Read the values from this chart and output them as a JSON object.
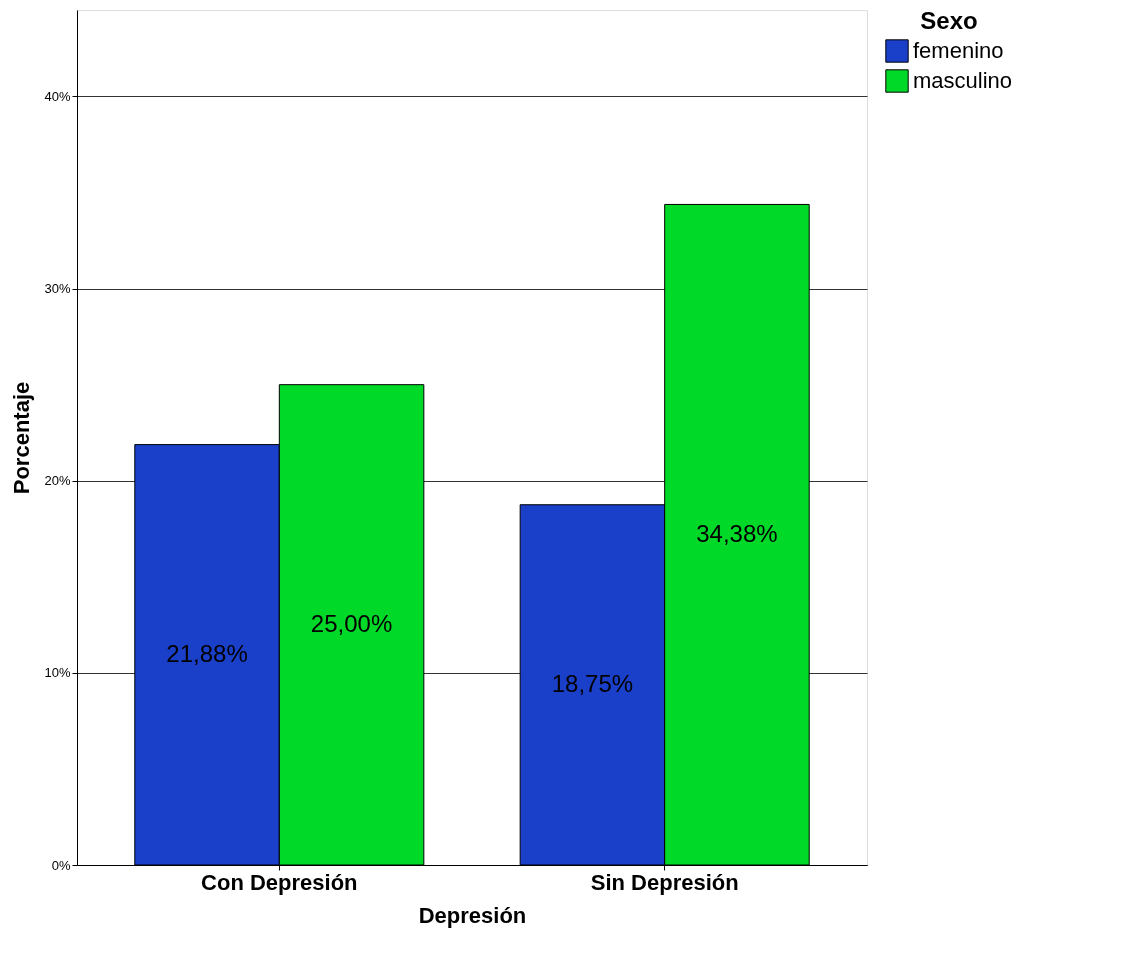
{
  "chart_data": {
    "type": "bar",
    "xlabel": "Depresión",
    "ylabel": "Porcentaje",
    "legend_title": "Sexo",
    "categories": [
      "Con Depresión",
      "Sin Depresión"
    ],
    "series": [
      {
        "name": "femenino",
        "color": "#1a3fc9",
        "values": [
          21.88,
          18.75
        ],
        "value_labels": [
          "21,88%",
          "18,75%"
        ]
      },
      {
        "name": "masculino",
        "color": "#00d927",
        "values": [
          25.0,
          34.38
        ],
        "value_labels": [
          "25,00%",
          "34,38%"
        ]
      }
    ],
    "ylim": [
      0,
      44.5
    ],
    "yticks": [
      {
        "value": 0,
        "label": "0%"
      },
      {
        "value": 10,
        "label": "10%"
      },
      {
        "value": 20,
        "label": "20%"
      },
      {
        "value": 30,
        "label": "30%"
      },
      {
        "value": 40,
        "label": "40%"
      }
    ],
    "grid": "y",
    "legend": "top right"
  }
}
